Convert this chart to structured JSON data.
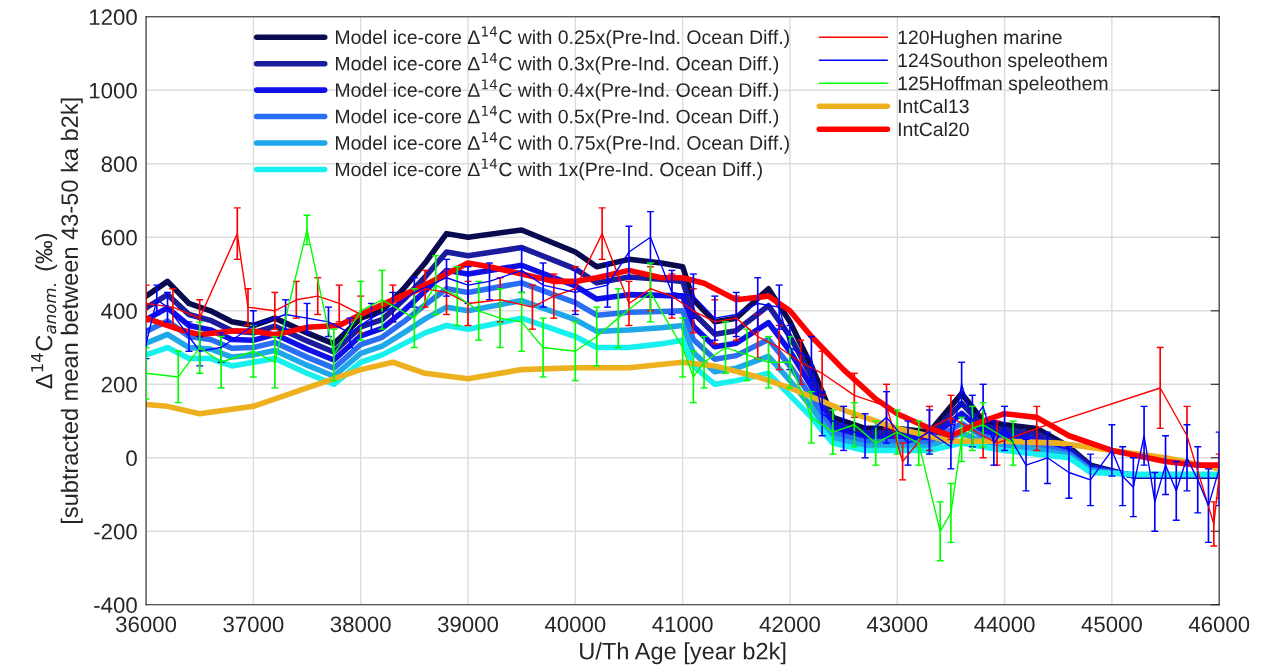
{
  "chart_data": {
    "type": "line",
    "xlabel": "U/Th Age [year b2k]",
    "ylabel": "Δ$^{14}$C$_{anom.}$ (‰)\n[subtracted mean between 43-50 ka b2k]",
    "xlim": [
      36000,
      46000
    ],
    "xticks": [
      36000,
      37000,
      38000,
      39000,
      40000,
      41000,
      42000,
      43000,
      44000,
      45000,
      46000
    ],
    "ylim": [
      -400,
      1200
    ],
    "yticks": [
      -400,
      -200,
      0,
      200,
      400,
      600,
      800,
      1000,
      1200
    ],
    "grid": true,
    "legend": "top",
    "line_style": "solid",
    "x": [
      36000,
      36200,
      36400,
      36600,
      36800,
      37000,
      37200,
      37500,
      37750,
      38000,
      38200,
      38400,
      38600,
      38800,
      39000,
      39500,
      40000,
      40200,
      40500,
      40800,
      41000,
      41100,
      41300,
      41500,
      41800,
      42000,
      42200,
      42400,
      42700,
      43000,
      43300,
      43600,
      43800,
      44000,
      44300,
      44600,
      44800,
      45200,
      45600,
      46000
    ],
    "series": [
      {
        "name": "Model ice-core Δ$^{14}$C with 0.25x(Pre-Ind. Ocean Diff.)",
        "color": "#0a0a50",
        "values": [
          440,
          480,
          420,
          400,
          370,
          360,
          380,
          340,
          310,
          380,
          400,
          460,
          530,
          610,
          600,
          620,
          560,
          520,
          540,
          530,
          520,
          430,
          370,
          380,
          460,
          370,
          250,
          110,
          80,
          80,
          70,
          175,
          100,
          90,
          80,
          30,
          -20,
          -50,
          -50,
          -50
        ]
      },
      {
        "name": "Model ice-core Δ$^{14}$C with 0.3x(Pre-Ind. Ocean Diff.)",
        "color": "#1c1c9c",
        "values": [
          408,
          444,
          390,
          374,
          346,
          340,
          358,
          318,
          288,
          356,
          376,
          430,
          492,
          560,
          550,
          572,
          514,
          476,
          492,
          486,
          480,
          394,
          336,
          346,
          414,
          330,
          222,
          96,
          68,
          68,
          60,
          148,
          86,
          76,
          66,
          24,
          -24,
          -49,
          -49,
          -49
        ]
      },
      {
        "name": "Model ice-core Δ$^{14}$C with 0.4x(Pre-Ind. Ocean Diff.)",
        "color": "#0f0fe6",
        "values": [
          376,
          408,
          360,
          348,
          322,
          320,
          336,
          296,
          266,
          332,
          352,
          400,
          454,
          510,
          500,
          524,
          468,
          432,
          444,
          442,
          440,
          358,
          302,
          312,
          368,
          290,
          194,
          82,
          56,
          56,
          50,
          121,
          72,
          62,
          52,
          18,
          -28,
          -48,
          -48,
          -48
        ]
      },
      {
        "name": "Model ice-core Δ$^{14}$C with 0.5x(Pre-Ind. Ocean Diff.)",
        "color": "#2a6ef2",
        "values": [
          344,
          372,
          330,
          322,
          298,
          300,
          314,
          274,
          244,
          308,
          328,
          370,
          416,
          460,
          450,
          476,
          422,
          388,
          396,
          398,
          400,
          322,
          268,
          278,
          322,
          250,
          166,
          68,
          44,
          44,
          40,
          94,
          58,
          48,
          38,
          12,
          -32,
          -47,
          -47,
          -47
        ]
      },
      {
        "name": "Model ice-core Δ$^{14}$C with 0.75x(Pre-Ind. Ocean Diff.)",
        "color": "#1ea8ea",
        "values": [
          312,
          336,
          300,
          296,
          274,
          280,
          292,
          252,
          222,
          284,
          304,
          340,
          378,
          410,
          400,
          428,
          376,
          344,
          348,
          354,
          360,
          286,
          234,
          244,
          276,
          210,
          138,
          54,
          32,
          32,
          30,
          67,
          44,
          34,
          24,
          6,
          -36,
          -46,
          -46,
          -46
        ]
      },
      {
        "name": "Model ice-core Δ$^{14}$C with 1x(Pre-Ind. Ocean Diff.)",
        "color": "#18f0f0",
        "values": [
          280,
          300,
          270,
          270,
          250,
          260,
          270,
          230,
          200,
          260,
          280,
          310,
          340,
          360,
          350,
          380,
          330,
          300,
          300,
          310,
          320,
          250,
          200,
          210,
          230,
          170,
          110,
          40,
          20,
          20,
          20,
          40,
          30,
          20,
          10,
          0,
          -40,
          -45,
          -45,
          -45
        ]
      },
      {
        "name": "120Hughen marine",
        "color": "#ff0000",
        "x": [
          36000,
          36250,
          36500,
          36850,
          36950,
          37200,
          37400,
          37600,
          37800,
          38000,
          38300,
          38600,
          38800,
          39000,
          39300,
          39600,
          39800,
          40000,
          40250,
          40500,
          40700,
          40900,
          41100,
          41300,
          41500,
          41700,
          41900,
          42100,
          42300,
          42600,
          42900,
          43050,
          43300,
          43500,
          43800,
          43930,
          44300,
          45450,
          45700,
          45950,
          46000
        ],
        "values": [
          420,
          410,
          380,
          610,
          410,
          400,
          430,
          440,
          420,
          390,
          420,
          460,
          450,
          420,
          430,
          410,
          440,
          460,
          610,
          420,
          460,
          440,
          400,
          370,
          380,
          330,
          300,
          260,
          230,
          170,
          140,
          -10,
          80,
          110,
          60,
          40,
          80,
          190,
          60,
          -180,
          -50
        ],
        "errors": [
          50,
          50,
          50,
          70,
          50,
          50,
          50,
          50,
          50,
          50,
          50,
          50,
          60,
          60,
          60,
          60,
          60,
          60,
          70,
          60,
          60,
          60,
          60,
          60,
          60,
          60,
          60,
          60,
          60,
          60,
          60,
          50,
          60,
          60,
          60,
          60,
          60,
          110,
          80,
          60,
          60
        ]
      },
      {
        "name": "124Southon speleothem",
        "color": "#0000ff",
        "x": [
          36000,
          36100,
          36200,
          36400,
          36500,
          36700,
          37000,
          37300,
          37500,
          37700,
          37900,
          38100,
          38300,
          38500,
          38800,
          39000,
          39200,
          39500,
          39700,
          40000,
          40300,
          40500,
          40700,
          40900,
          41100,
          41300,
          41500,
          41700,
          41900,
          42000,
          42200,
          42300,
          42500,
          42700,
          42900,
          43100,
          43300,
          43500,
          43600,
          43700,
          43800,
          43900,
          44000,
          44200,
          44400,
          44600,
          44800,
          45000,
          45100,
          45200,
          45300,
          45400,
          45500,
          45600,
          45700,
          45800,
          45900,
          46000
        ],
        "values": [
          310,
          430,
          410,
          330,
          290,
          300,
          360,
          390,
          380,
          370,
          340,
          380,
          410,
          450,
          490,
          470,
          480,
          510,
          470,
          450,
          470,
          560,
          600,
          450,
          440,
          380,
          390,
          420,
          410,
          300,
          270,
          120,
          80,
          60,
          110,
          40,
          70,
          30,
          200,
          100,
          140,
          40,
          80,
          -20,
          0,
          -40,
          -60,
          20,
          -50,
          -80,
          60,
          -120,
          -20,
          -90,
          0,
          -60,
          -130,
          -30
        ],
        "errors": [
          40,
          40,
          40,
          40,
          40,
          40,
          40,
          40,
          40,
          40,
          40,
          40,
          40,
          40,
          50,
          50,
          50,
          60,
          60,
          60,
          60,
          70,
          70,
          60,
          60,
          60,
          60,
          70,
          60,
          60,
          60,
          60,
          60,
          60,
          70,
          60,
          60,
          60,
          60,
          70,
          60,
          60,
          60,
          70,
          70,
          70,
          70,
          70,
          80,
          80,
          80,
          80,
          80,
          80,
          90,
          90,
          100,
          100
        ]
      },
      {
        "name": "125Hoffman speleothem",
        "color": "#00ff00",
        "x": [
          36000,
          36300,
          36500,
          36700,
          37000,
          37200,
          37500,
          37750,
          38000,
          38200,
          38500,
          38700,
          38900,
          39100,
          39300,
          39500,
          39700,
          40000,
          40200,
          40400,
          40700,
          41000,
          41100,
          41200,
          41400,
          41600,
          41800,
          42000,
          42200,
          42400,
          42600,
          42800,
          43000,
          43200,
          43400,
          43500,
          43600,
          43700,
          43800,
          44080
        ],
        "values": [
          230,
          220,
          300,
          260,
          290,
          260,
          620,
          280,
          400,
          430,
          380,
          470,
          440,
          400,
          380,
          370,
          300,
          290,
          330,
          380,
          450,
          300,
          220,
          260,
          300,
          280,
          260,
          260,
          110,
          70,
          90,
          40,
          70,
          40,
          -200,
          -150,
          50,
          80,
          90,
          40
        ],
        "errors": [
          70,
          70,
          70,
          70,
          70,
          70,
          40,
          70,
          80,
          80,
          80,
          80,
          80,
          80,
          80,
          80,
          80,
          80,
          80,
          80,
          80,
          80,
          70,
          70,
          70,
          70,
          70,
          70,
          70,
          60,
          60,
          60,
          60,
          60,
          80,
          80,
          60,
          60,
          60,
          60
        ]
      },
      {
        "name": "IntCal13",
        "color": "#edb120",
        "x": [
          36000,
          36200,
          36500,
          37000,
          37500,
          38000,
          38300,
          38600,
          39000,
          39500,
          40000,
          40500,
          41000,
          41300,
          41700,
          42000,
          42500,
          43000,
          43500,
          44000,
          44500,
          45000,
          45500,
          46000
        ],
        "values": [
          145,
          140,
          120,
          140,
          190,
          240,
          260,
          230,
          215,
          240,
          245,
          245,
          260,
          250,
          220,
          190,
          130,
          80,
          45,
          45,
          40,
          20,
          0,
          -30
        ]
      },
      {
        "name": "IntCal20",
        "color": "#ff0000",
        "x": [
          36000,
          36300,
          36500,
          36800,
          37000,
          37200,
          37500,
          37800,
          38000,
          38300,
          38600,
          39000,
          39200,
          39500,
          39800,
          40000,
          40200,
          40500,
          40800,
          41000,
          41200,
          41500,
          41800,
          42000,
          42200,
          42500,
          42800,
          43000,
          43300,
          43500,
          43800,
          44000,
          44300,
          44600,
          45000,
          45500,
          45800,
          46000
        ],
        "values": [
          380,
          350,
          335,
          345,
          345,
          335,
          355,
          360,
          390,
          430,
          470,
          530,
          520,
          500,
          480,
          480,
          490,
          510,
          490,
          490,
          475,
          430,
          440,
          400,
          330,
          240,
          160,
          120,
          80,
          60,
          100,
          120,
          110,
          60,
          20,
          -10,
          -20,
          -20
        ]
      }
    ]
  }
}
